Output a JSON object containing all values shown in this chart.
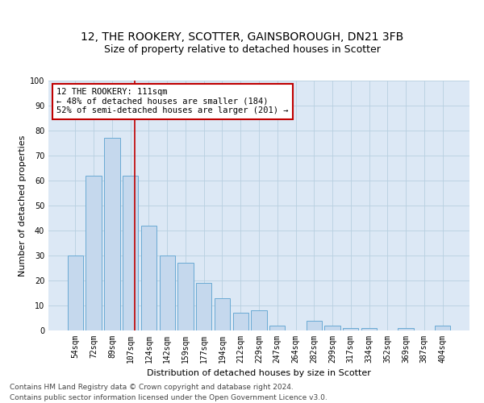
{
  "title": "12, THE ROOKERY, SCOTTER, GAINSBOROUGH, DN21 3FB",
  "subtitle": "Size of property relative to detached houses in Scotter",
  "xlabel": "Distribution of detached houses by size in Scotter",
  "ylabel": "Number of detached properties",
  "bar_labels": [
    "54sqm",
    "72sqm",
    "89sqm",
    "107sqm",
    "124sqm",
    "142sqm",
    "159sqm",
    "177sqm",
    "194sqm",
    "212sqm",
    "229sqm",
    "247sqm",
    "264sqm",
    "282sqm",
    "299sqm",
    "317sqm",
    "334sqm",
    "352sqm",
    "369sqm",
    "387sqm",
    "404sqm"
  ],
  "bar_values": [
    30,
    62,
    77,
    62,
    42,
    30,
    27,
    19,
    13,
    7,
    8,
    2,
    0,
    4,
    2,
    1,
    1,
    0,
    1,
    0,
    2
  ],
  "bar_color": "#c5d8ed",
  "bar_edge_color": "#6aaad4",
  "vline_position": 3.25,
  "vline_color": "#c00000",
  "annotation_text": "12 THE ROOKERY: 111sqm\n← 48% of detached houses are smaller (184)\n52% of semi-detached houses are larger (201) →",
  "annotation_box_facecolor": "#ffffff",
  "annotation_box_edgecolor": "#c00000",
  "ylim": [
    0,
    100
  ],
  "yticks": [
    0,
    10,
    20,
    30,
    40,
    50,
    60,
    70,
    80,
    90,
    100
  ],
  "bg_color": "#dce8f5",
  "grid_color": "#b8cfe0",
  "footer_line1": "Contains HM Land Registry data © Crown copyright and database right 2024.",
  "footer_line2": "Contains public sector information licensed under the Open Government Licence v3.0.",
  "title_fontsize": 10,
  "subtitle_fontsize": 9,
  "axis_label_fontsize": 8,
  "tick_fontsize": 7,
  "annotation_fontsize": 7.5,
  "footer_fontsize": 6.5
}
